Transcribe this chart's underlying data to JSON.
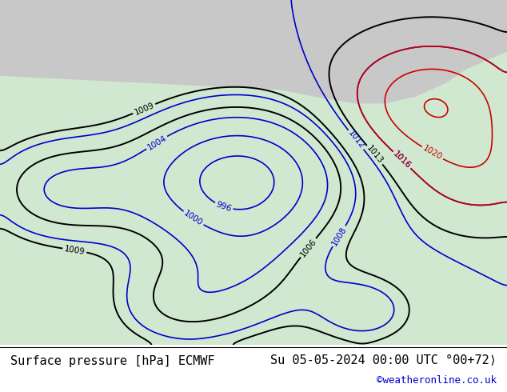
{
  "title_left": "Surface pressure [hPa] ECMWF",
  "title_right": "Su 05-05-2024 00:00 UTC °00+72⟩",
  "copyright": "©weatheronline.co.uk",
  "bg_color_land": "#90c060",
  "bg_color_sea": "#d0e8d0",
  "bg_color_polar": "#c8c8c8",
  "contour_blue_color": "#0000cc",
  "contour_black_color": "#000000",
  "contour_red_color": "#cc0000",
  "title_fontsize": 11,
  "copyright_color": "#0000cc",
  "fig_width": 6.34,
  "fig_height": 4.9,
  "dpi": 100
}
